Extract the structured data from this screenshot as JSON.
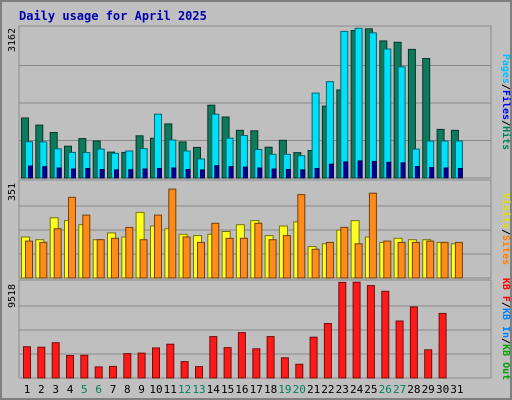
{
  "chart_data": {
    "type": "bar",
    "title": "Daily usage for April 2025",
    "days": [
      "1",
      "2",
      "3",
      "4",
      "5",
      "6",
      "7",
      "8",
      "9",
      "10",
      "11",
      "12",
      "13",
      "14",
      "15",
      "16",
      "17",
      "18",
      "19",
      "20",
      "21",
      "22",
      "23",
      "24",
      "25",
      "26",
      "27",
      "28",
      "29",
      "30",
      "31"
    ],
    "weekend_days": [
      "5",
      "6",
      "12",
      "13",
      "19",
      "20",
      "26",
      "27"
    ],
    "panels": [
      {
        "id": "pages-files-hits",
        "ymax_label": "3162",
        "ymax": 3162,
        "legend": [
          {
            "text": "Pages",
            "color": "#00c0ff"
          },
          {
            "text": "/",
            "color": "#000000"
          },
          {
            "text": "Files",
            "color": "#0000ff"
          },
          {
            "text": "/",
            "color": "#000000"
          },
          {
            "text": "Hits",
            "color": "#00805c"
          }
        ],
        "series": [
          {
            "name": "Hits",
            "color": "#0e7a5c",
            "values": [
              1265,
              1115,
              960,
              670,
              830,
              780,
              545,
              540,
              890,
              840,
              1140,
              760,
              645,
              1535,
              1285,
              1005,
              995,
              650,
              795,
              535,
              580,
              1515,
              1855,
              3110,
              3145,
              2890,
              2860,
              2710,
              2520,
              1025,
              1005
            ]
          },
          {
            "name": "Files",
            "color": "#00e0f8",
            "values": [
              765,
              760,
              615,
              540,
              535,
              610,
              520,
              570,
              620,
              1345,
              800,
              570,
              400,
              1345,
              840,
              895,
              600,
              500,
              500,
              470,
              1790,
              2030,
              3090,
              3155,
              3060,
              2720,
              2345,
              610,
              780,
              780,
              780
            ]
          },
          {
            "name": "Pages",
            "color": "#0000a0",
            "values": [
              250,
              240,
              210,
              190,
              200,
              180,
              170,
              175,
              190,
              200,
              210,
              180,
              170,
              260,
              240,
              230,
              210,
              190,
              180,
              170,
              200,
              290,
              340,
              360,
              350,
              330,
              320,
              240,
              220,
              210,
              200
            ]
          }
        ]
      },
      {
        "id": "visits-sites",
        "ymax_label": "351",
        "ymax": 351,
        "legend": [
          {
            "text": "Visits",
            "color": "#e0e000"
          },
          {
            "text": "/",
            "color": "#000000"
          },
          {
            "text": "Sites",
            "color": "#ff8000"
          }
        ],
        "series": [
          {
            "name": "Visits",
            "color": "#ffff20",
            "values": [
              150,
              140,
              220,
              210,
              195,
              140,
              165,
              150,
              240,
              190,
              180,
              160,
              155,
              160,
              170,
              195,
              210,
              155,
              190,
              205,
              115,
              125,
              175,
              210,
              150,
              130,
              145,
              140,
              140,
              130,
              125
            ]
          },
          {
            "name": "Sites",
            "color": "#ff8c1a",
            "values": [
              135,
              130,
              180,
              295,
              230,
              140,
              145,
              185,
              140,
              230,
              325,
              150,
              130,
              200,
              145,
              145,
              200,
              140,
              155,
              305,
              105,
              130,
              185,
              125,
              310,
              135,
              130,
              130,
              135,
              130,
              130
            ]
          }
        ]
      },
      {
        "id": "kb-f-in-out",
        "ymax_label": "9518",
        "ymax": 9518,
        "legend": [
          {
            "text": "KB F",
            "color": "#ff0000"
          },
          {
            "text": "/",
            "color": "#000000"
          },
          {
            "text": "KB In",
            "color": "#0080ff"
          },
          {
            "text": "/",
            "color": "#000000"
          },
          {
            "text": "KB Out",
            "color": "#00a000"
          }
        ],
        "series": [
          {
            "name": "KB F",
            "color": "#ff1a1a",
            "values": [
              3100,
              3050,
              3500,
              2230,
              2250,
              1100,
              1150,
              2420,
              2470,
              2980,
              3350,
              1630,
              1130,
              4100,
              3010,
              4500,
              2900,
              4100,
              2000,
              1360,
              4050,
              5400,
              9480,
              9500,
              9160,
              8600,
              5650,
              7040,
              2800,
              6400,
              0
            ]
          }
        ]
      }
    ]
  }
}
